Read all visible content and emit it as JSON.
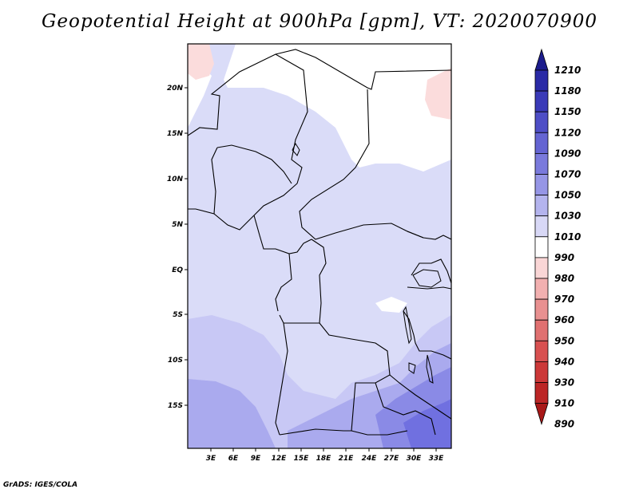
{
  "title": "Geopotential Height at 900hPa [gpm], VT: 2020070900",
  "credit": "GrADS: IGES/COLA",
  "map": {
    "lat_labels": [
      "20N",
      "15N",
      "10N",
      "5N",
      "EQ",
      "5S",
      "10S",
      "15S"
    ],
    "lon_labels": [
      "3E",
      "6E",
      "9E",
      "12E",
      "15E",
      "18E",
      "21E",
      "24E",
      "27E",
      "30E",
      "33E"
    ],
    "colors": {
      "land_border": "#000000",
      "lavender": "#dadcf8",
      "light_blue": "#c8c8f5",
      "mid_blue": "#aaaaee",
      "deep_blue": "#7070e0",
      "pink": "#fbdcdc"
    }
  },
  "colorbar": {
    "labels": [
      "1210",
      "1180",
      "1150",
      "1120",
      "1090",
      "1070",
      "1050",
      "1030",
      "1010",
      "990",
      "980",
      "970",
      "960",
      "950",
      "940",
      "930",
      "910",
      "890"
    ],
    "colors": [
      "#1c1c8c",
      "#2a2aa6",
      "#3a3ab8",
      "#4e4ec6",
      "#6464d2",
      "#7a7adc",
      "#9696e6",
      "#b4b4ee",
      "#d8d8f6",
      "#ffffff",
      "#fad6d6",
      "#f2b0b0",
      "#e89090",
      "#e07070",
      "#d85050",
      "#cc3838",
      "#bc2626",
      "#a81818"
    ]
  }
}
